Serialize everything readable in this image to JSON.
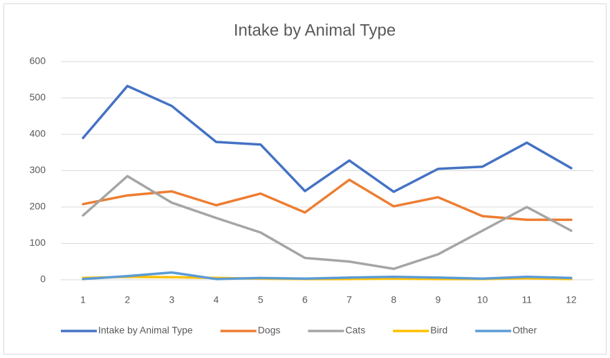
{
  "chart_data": {
    "type": "line",
    "title": "Intake by Animal Type",
    "categories": [
      "1",
      "2",
      "3",
      "4",
      "5",
      "6",
      "7",
      "8",
      "9",
      "10",
      "11",
      "12"
    ],
    "ylim": [
      0,
      600
    ],
    "yticks": [
      0,
      100,
      200,
      300,
      400,
      500,
      600
    ],
    "grid": true,
    "legend": "bottom",
    "series": [
      {
        "name": "Intake by Animal Type",
        "color": "#4472c4",
        "values": [
          390,
          533,
          478,
          379,
          372,
          244,
          328,
          242,
          305,
          311,
          377,
          307
        ]
      },
      {
        "name": "Dogs",
        "color": "#ed7d31",
        "values": [
          208,
          232,
          243,
          205,
          237,
          185,
          275,
          202,
          227,
          175,
          165,
          165
        ]
      },
      {
        "name": "Cats",
        "color": "#a5a5a5",
        "values": [
          177,
          285,
          212,
          170,
          130,
          60,
          50,
          30,
          70,
          135,
          200,
          135
        ]
      },
      {
        "name": "Bird",
        "color": "#ffc000",
        "values": [
          5,
          8,
          7,
          5,
          3,
          2,
          2,
          3,
          2,
          2,
          4,
          2
        ]
      },
      {
        "name": "Other",
        "color": "#5b9bd5",
        "values": [
          2,
          10,
          20,
          2,
          5,
          3,
          6,
          8,
          6,
          3,
          8,
          5
        ]
      }
    ]
  }
}
